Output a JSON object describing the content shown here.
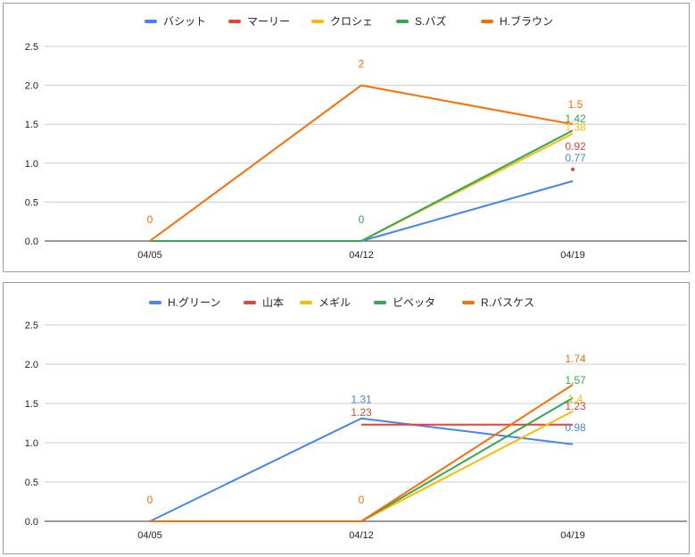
{
  "colors": {
    "blue": "#4285f4",
    "red": "#ea4335",
    "yellow": "#fbbc04",
    "green": "#34a853",
    "orange": "#ff6d01",
    "grid": "#cccccc",
    "axis": "#333333"
  },
  "chart_data": [
    {
      "type": "line",
      "title": "",
      "xlabel": "",
      "ylabel": "",
      "categories": [
        "04/05",
        "04/12",
        "04/19"
      ],
      "ylim": [
        0,
        2.5
      ],
      "yticks": [
        "0.0",
        "0.5",
        "1.0",
        "1.5",
        "2.0",
        "2.5"
      ],
      "grid": true,
      "legend": "top-center",
      "series": [
        {
          "name": "バシット",
          "color": "#4285f4",
          "values": [
            0,
            0,
            0.77
          ],
          "labels": [
            "",
            "",
            "0.77"
          ]
        },
        {
          "name": "マーリー",
          "color": "#ea4335",
          "values": [
            null,
            null,
            0.92
          ],
          "labels": [
            "",
            "",
            "0.92"
          ]
        },
        {
          "name": "クロシェ",
          "color": "#fbbc04",
          "values": [
            0,
            0,
            1.38
          ],
          "labels": [
            "",
            "",
            "1.38"
          ]
        },
        {
          "name": "S.バズ",
          "color": "#34a853",
          "values": [
            0,
            0,
            1.42
          ],
          "labels": [
            "",
            "0",
            "1.42"
          ]
        },
        {
          "name": "H.ブラウン",
          "color": "#ff6d01",
          "values": [
            0,
            2,
            1.5
          ],
          "labels": [
            "0",
            "2",
            "1.5"
          ]
        }
      ]
    },
    {
      "type": "line",
      "title": "",
      "xlabel": "",
      "ylabel": "",
      "categories": [
        "04/05",
        "04/12",
        "04/19"
      ],
      "ylim": [
        0,
        2.5
      ],
      "yticks": [
        "0.0",
        "0.5",
        "1.0",
        "1.5",
        "2.0",
        "2.5"
      ],
      "grid": true,
      "legend": "top-center",
      "series": [
        {
          "name": "H.グリーン",
          "color": "#4285f4",
          "values": [
            0,
            1.31,
            0.98
          ],
          "labels": [
            "",
            "1.31",
            "0.98"
          ]
        },
        {
          "name": "山本",
          "color": "#ea4335",
          "values": [
            null,
            1.23,
            1.23
          ],
          "labels": [
            "",
            "1.23",
            "1.23"
          ]
        },
        {
          "name": "メギル",
          "color": "#fbbc04",
          "values": [
            0,
            0,
            1.4
          ],
          "labels": [
            "",
            "",
            "1.4"
          ]
        },
        {
          "name": "ピベッタ",
          "color": "#34a853",
          "values": [
            0,
            0,
            1.57
          ],
          "labels": [
            "",
            "",
            "1.57"
          ]
        },
        {
          "name": "R.バスケス",
          "color": "#ff6d01",
          "values": [
            0,
            0,
            1.74
          ],
          "labels": [
            "0",
            "0",
            "1.74"
          ]
        }
      ]
    }
  ]
}
